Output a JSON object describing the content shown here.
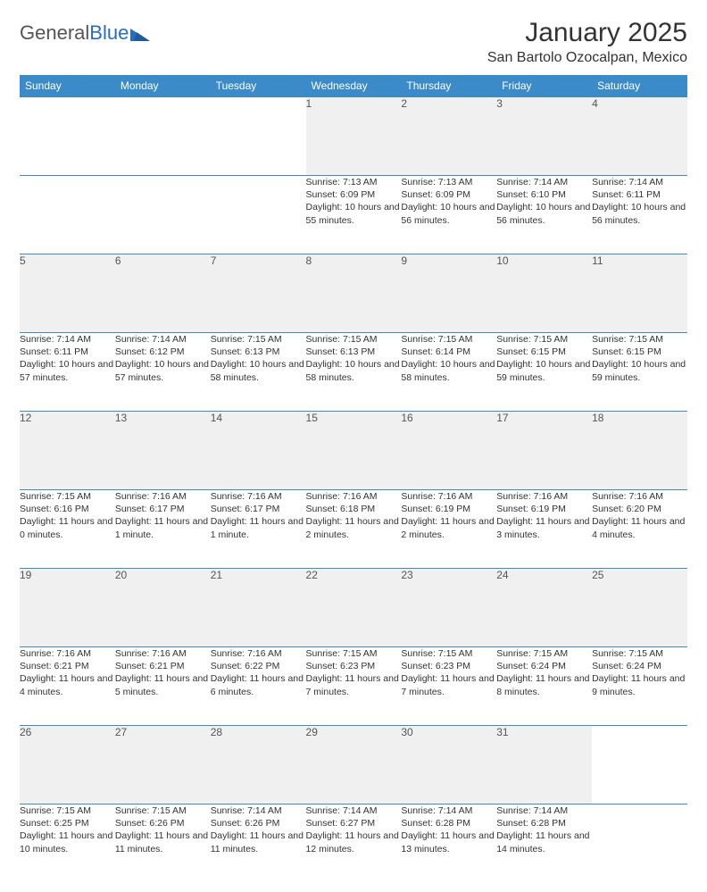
{
  "logo": {
    "text1": "General",
    "text2": "Blue"
  },
  "title": "January 2025",
  "location": "San Bartolo Ozocalpan, Mexico",
  "colors": {
    "header_bg": "#3b8bc9",
    "header_text": "#ffffff",
    "daynum_bg": "#f0f0f0",
    "border": "#3b8bc9",
    "logo_blue": "#2a6ebb",
    "text": "#333333"
  },
  "weekdays": [
    "Sunday",
    "Monday",
    "Tuesday",
    "Wednesday",
    "Thursday",
    "Friday",
    "Saturday"
  ],
  "weeks": [
    {
      "nums": [
        "",
        "",
        "",
        "1",
        "2",
        "3",
        "4"
      ],
      "cells": [
        null,
        null,
        null,
        {
          "sunrise": "Sunrise: 7:13 AM",
          "sunset": "Sunset: 6:09 PM",
          "daylight": "Daylight: 10 hours and 55 minutes."
        },
        {
          "sunrise": "Sunrise: 7:13 AM",
          "sunset": "Sunset: 6:09 PM",
          "daylight": "Daylight: 10 hours and 56 minutes."
        },
        {
          "sunrise": "Sunrise: 7:14 AM",
          "sunset": "Sunset: 6:10 PM",
          "daylight": "Daylight: 10 hours and 56 minutes."
        },
        {
          "sunrise": "Sunrise: 7:14 AM",
          "sunset": "Sunset: 6:11 PM",
          "daylight": "Daylight: 10 hours and 56 minutes."
        }
      ]
    },
    {
      "nums": [
        "5",
        "6",
        "7",
        "8",
        "9",
        "10",
        "11"
      ],
      "cells": [
        {
          "sunrise": "Sunrise: 7:14 AM",
          "sunset": "Sunset: 6:11 PM",
          "daylight": "Daylight: 10 hours and 57 minutes."
        },
        {
          "sunrise": "Sunrise: 7:14 AM",
          "sunset": "Sunset: 6:12 PM",
          "daylight": "Daylight: 10 hours and 57 minutes."
        },
        {
          "sunrise": "Sunrise: 7:15 AM",
          "sunset": "Sunset: 6:13 PM",
          "daylight": "Daylight: 10 hours and 58 minutes."
        },
        {
          "sunrise": "Sunrise: 7:15 AM",
          "sunset": "Sunset: 6:13 PM",
          "daylight": "Daylight: 10 hours and 58 minutes."
        },
        {
          "sunrise": "Sunrise: 7:15 AM",
          "sunset": "Sunset: 6:14 PM",
          "daylight": "Daylight: 10 hours and 58 minutes."
        },
        {
          "sunrise": "Sunrise: 7:15 AM",
          "sunset": "Sunset: 6:15 PM",
          "daylight": "Daylight: 10 hours and 59 minutes."
        },
        {
          "sunrise": "Sunrise: 7:15 AM",
          "sunset": "Sunset: 6:15 PM",
          "daylight": "Daylight: 10 hours and 59 minutes."
        }
      ]
    },
    {
      "nums": [
        "12",
        "13",
        "14",
        "15",
        "16",
        "17",
        "18"
      ],
      "cells": [
        {
          "sunrise": "Sunrise: 7:15 AM",
          "sunset": "Sunset: 6:16 PM",
          "daylight": "Daylight: 11 hours and 0 minutes."
        },
        {
          "sunrise": "Sunrise: 7:16 AM",
          "sunset": "Sunset: 6:17 PM",
          "daylight": "Daylight: 11 hours and 1 minute."
        },
        {
          "sunrise": "Sunrise: 7:16 AM",
          "sunset": "Sunset: 6:17 PM",
          "daylight": "Daylight: 11 hours and 1 minute."
        },
        {
          "sunrise": "Sunrise: 7:16 AM",
          "sunset": "Sunset: 6:18 PM",
          "daylight": "Daylight: 11 hours and 2 minutes."
        },
        {
          "sunrise": "Sunrise: 7:16 AM",
          "sunset": "Sunset: 6:19 PM",
          "daylight": "Daylight: 11 hours and 2 minutes."
        },
        {
          "sunrise": "Sunrise: 7:16 AM",
          "sunset": "Sunset: 6:19 PM",
          "daylight": "Daylight: 11 hours and 3 minutes."
        },
        {
          "sunrise": "Sunrise: 7:16 AM",
          "sunset": "Sunset: 6:20 PM",
          "daylight": "Daylight: 11 hours and 4 minutes."
        }
      ]
    },
    {
      "nums": [
        "19",
        "20",
        "21",
        "22",
        "23",
        "24",
        "25"
      ],
      "cells": [
        {
          "sunrise": "Sunrise: 7:16 AM",
          "sunset": "Sunset: 6:21 PM",
          "daylight": "Daylight: 11 hours and 4 minutes."
        },
        {
          "sunrise": "Sunrise: 7:16 AM",
          "sunset": "Sunset: 6:21 PM",
          "daylight": "Daylight: 11 hours and 5 minutes."
        },
        {
          "sunrise": "Sunrise: 7:16 AM",
          "sunset": "Sunset: 6:22 PM",
          "daylight": "Daylight: 11 hours and 6 minutes."
        },
        {
          "sunrise": "Sunrise: 7:15 AM",
          "sunset": "Sunset: 6:23 PM",
          "daylight": "Daylight: 11 hours and 7 minutes."
        },
        {
          "sunrise": "Sunrise: 7:15 AM",
          "sunset": "Sunset: 6:23 PM",
          "daylight": "Daylight: 11 hours and 7 minutes."
        },
        {
          "sunrise": "Sunrise: 7:15 AM",
          "sunset": "Sunset: 6:24 PM",
          "daylight": "Daylight: 11 hours and 8 minutes."
        },
        {
          "sunrise": "Sunrise: 7:15 AM",
          "sunset": "Sunset: 6:24 PM",
          "daylight": "Daylight: 11 hours and 9 minutes."
        }
      ]
    },
    {
      "nums": [
        "26",
        "27",
        "28",
        "29",
        "30",
        "31",
        ""
      ],
      "cells": [
        {
          "sunrise": "Sunrise: 7:15 AM",
          "sunset": "Sunset: 6:25 PM",
          "daylight": "Daylight: 11 hours and 10 minutes."
        },
        {
          "sunrise": "Sunrise: 7:15 AM",
          "sunset": "Sunset: 6:26 PM",
          "daylight": "Daylight: 11 hours and 11 minutes."
        },
        {
          "sunrise": "Sunrise: 7:14 AM",
          "sunset": "Sunset: 6:26 PM",
          "daylight": "Daylight: 11 hours and 11 minutes."
        },
        {
          "sunrise": "Sunrise: 7:14 AM",
          "sunset": "Sunset: 6:27 PM",
          "daylight": "Daylight: 11 hours and 12 minutes."
        },
        {
          "sunrise": "Sunrise: 7:14 AM",
          "sunset": "Sunset: 6:28 PM",
          "daylight": "Daylight: 11 hours and 13 minutes."
        },
        {
          "sunrise": "Sunrise: 7:14 AM",
          "sunset": "Sunset: 6:28 PM",
          "daylight": "Daylight: 11 hours and 14 minutes."
        },
        null
      ]
    }
  ]
}
